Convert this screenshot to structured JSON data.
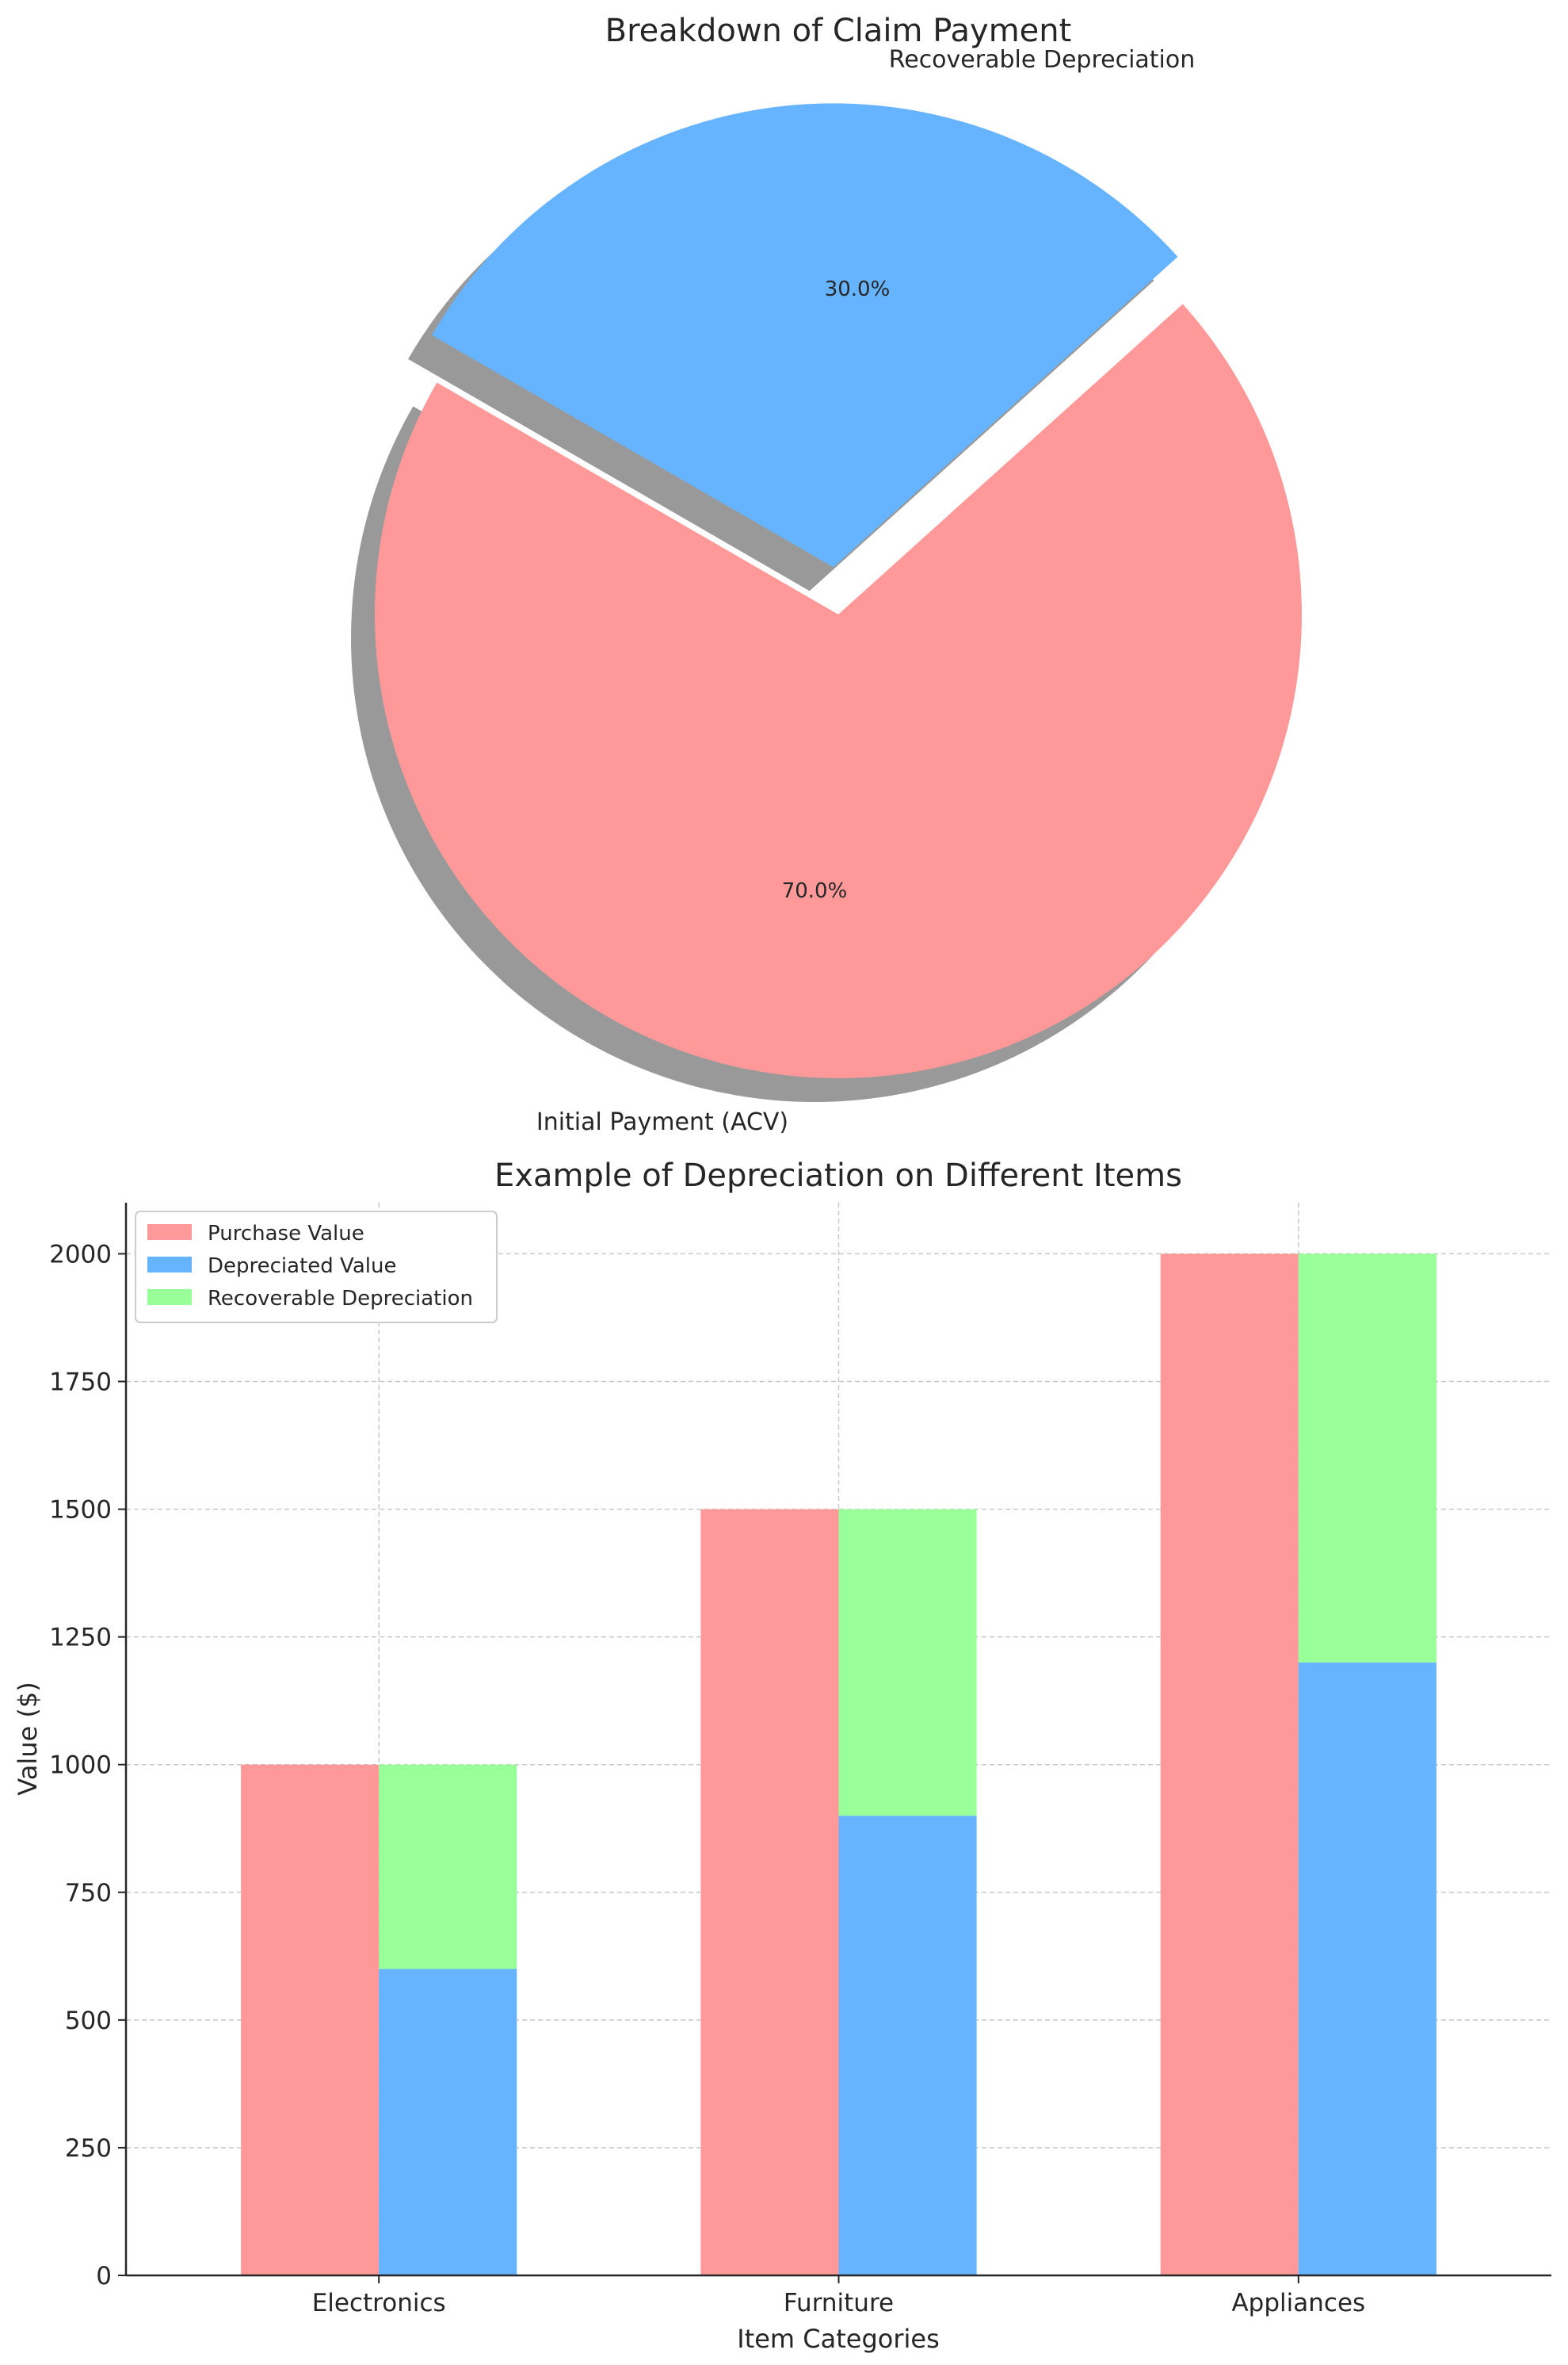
{
  "chart_data": [
    {
      "type": "pie",
      "title": "Breakdown of Claim Payment",
      "slices": [
        {
          "label": "Initial Payment (ACV)",
          "value": 70,
          "pct_label": "70.0%",
          "color": "#ff9999",
          "exploded": false
        },
        {
          "label": "Recoverable Depreciation",
          "value": 30,
          "pct_label": "30.0%",
          "color": "#66b3ff",
          "exploded": true
        }
      ],
      "shadow": true
    },
    {
      "type": "bar",
      "title": "Example of Depreciation on Different Items",
      "xlabel": "Item Categories",
      "ylabel": "Value ($)",
      "categories": [
        "Electronics",
        "Furniture",
        "Appliances"
      ],
      "series": [
        {
          "name": "Purchase Value",
          "values": [
            1000,
            1500,
            2000
          ],
          "color": "#ff9999",
          "group": "left"
        },
        {
          "name": "Depreciated Value",
          "values": [
            600,
            900,
            1200
          ],
          "color": "#66b3ff",
          "group": "right"
        },
        {
          "name": "Recoverable Depreciation",
          "values": [
            400,
            600,
            800
          ],
          "color": "#99ff99",
          "group": "right",
          "stacked_on": "Depreciated Value"
        }
      ],
      "ylim": [
        0,
        2100
      ],
      "yticks": [
        "0",
        "250",
        "500",
        "750",
        "1000",
        "1250",
        "1500",
        "1750",
        "2000"
      ],
      "grid": true,
      "legend_position": "top-left"
    }
  ]
}
